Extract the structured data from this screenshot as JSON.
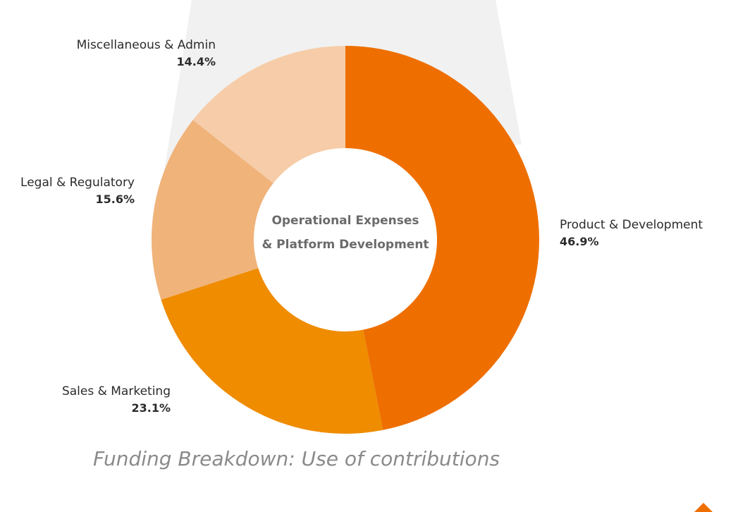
{
  "chart_data": {
    "type": "pie",
    "center_label_lines": [
      "Operational Expenses",
      "& Platform Development"
    ],
    "caption": "Funding Breakdown: Use of contributions",
    "slices": [
      {
        "label": "Product & Development",
        "value_text": "46.9%",
        "value": 46.9,
        "color": "#ee6f00"
      },
      {
        "label": "Sales & Marketing",
        "value_text": "23.1%",
        "value": 23.1,
        "color": "#ef8c00"
      },
      {
        "label": "Legal & Regulatory",
        "value_text": "15.6%",
        "value": 15.6,
        "color": "#f0b37a"
      },
      {
        "label": "Miscellaneous & Admin",
        "value_text": "14.4%",
        "value": 14.4,
        "color": "#f6cda8"
      }
    ]
  },
  "colors": {
    "backdrop": "#f1f1f1",
    "corner_accent": "#ee6f00"
  }
}
